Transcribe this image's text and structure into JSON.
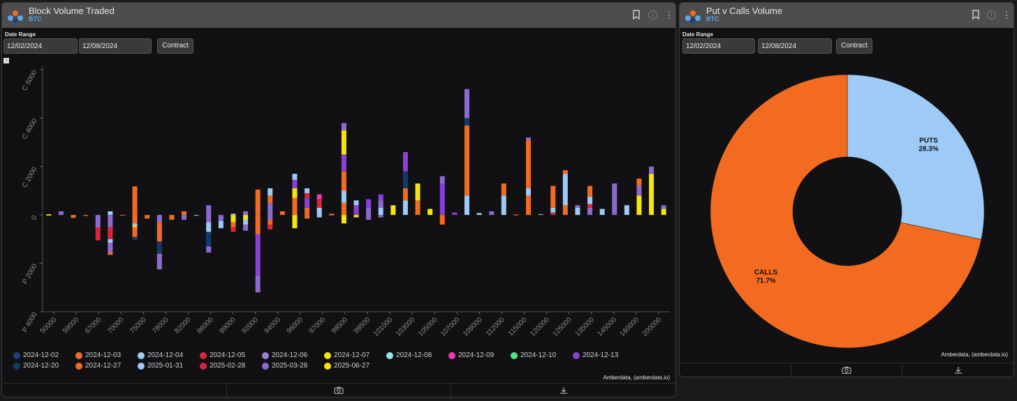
{
  "left": {
    "title": "Block Volume Traded",
    "subtitle": "BTC",
    "date_range_label": "Date Range",
    "start_date": "12/02/2024",
    "end_date": "12/08/2024",
    "contract_button": "Contract",
    "credit": "Amberdata, (amberdata.io)"
  },
  "right": {
    "title": "Put v Calls Volume",
    "subtitle": "BTC",
    "date_range_label": "Date Range",
    "start_date": "12/02/2024",
    "end_date": "12/08/2024",
    "contract_button": "Contract",
    "credit": "Amberdata, (amberdata.io)"
  },
  "icons": {
    "bookmark": "bookmark-icon",
    "info": "info-icon",
    "menu": "more-vertical-icon",
    "camera": "camera-icon",
    "download": "download-icon",
    "logo": "amberdata-logo"
  },
  "chart_data": [
    {
      "type": "bar",
      "stacked": true,
      "ylim": [
        -4000,
        6000
      ],
      "yticks": [
        {
          "value": 6000,
          "label": "C 6000"
        },
        {
          "value": 4000,
          "label": "C 4000"
        },
        {
          "value": 2000,
          "label": "C 2000"
        },
        {
          "value": 0,
          "label": "0"
        },
        {
          "value": -2000,
          "label": "P 2000"
        },
        {
          "value": -4000,
          "label": "P 4000"
        }
      ],
      "xtick_labels": [
        "50000",
        "59000",
        "67000",
        "70000",
        "75000",
        "78000",
        "82000",
        "86000",
        "89000",
        "92000",
        "94000",
        "96000",
        "97000",
        "98500",
        "99500",
        "101000",
        "103000",
        "105000",
        "107000",
        "109000",
        "112000",
        "115000",
        "120000",
        "125000",
        "135000",
        "145000",
        "160000",
        "200000"
      ],
      "legend": [
        {
          "name": "2024-12-02",
          "color": "#1b3f7a"
        },
        {
          "name": "2024-12-03",
          "color": "#f26b21"
        },
        {
          "name": "2024-12-04",
          "color": "#9dcbf5"
        },
        {
          "name": "2024-12-05",
          "color": "#d7263d"
        },
        {
          "name": "2024-12-06",
          "color": "#9b7fd4"
        },
        {
          "name": "2024-12-07",
          "color": "#f5e50a"
        },
        {
          "name": "2024-12-08",
          "color": "#8ee6e6"
        },
        {
          "name": "2024-12-09",
          "color": "#f03ab0"
        },
        {
          "name": "2024-12-10",
          "color": "#4ee88a"
        },
        {
          "name": "2024-12-13",
          "color": "#8a3fd8"
        },
        {
          "name": "2024-12-20",
          "color": "#123a6b"
        },
        {
          "name": "2024-12-27",
          "color": "#f26b21"
        },
        {
          "name": "2025-01-31",
          "color": "#9dcbf5"
        },
        {
          "name": "2025-02-28",
          "color": "#d7263d"
        },
        {
          "name": "2025-03-28",
          "color": "#8e6ad0"
        },
        {
          "name": "2025-06-27",
          "color": "#f5e50a"
        }
      ],
      "bars": [
        {
          "call": 30,
          "put": -30,
          "pos": [
            [
              "#f5e50a",
              30
            ]
          ],
          "neg": [
            [
              "#f5e50a",
              30
            ]
          ]
        },
        {
          "call": 150,
          "put": 0,
          "pos": [
            [
              "#8e6ad0",
              150
            ]
          ],
          "neg": []
        },
        {
          "call": 0,
          "put": -120,
          "pos": [],
          "neg": [
            [
              "#f26b21",
              120
            ]
          ]
        },
        {
          "call": 0,
          "put": -40,
          "pos": [],
          "neg": [
            [
              "#f26b21",
              40
            ]
          ]
        },
        {
          "call": 0,
          "put": -1050,
          "pos": [],
          "neg": [
            [
              "#8e6ad0",
              520
            ],
            [
              "#d7263d",
              530
            ]
          ]
        },
        {
          "call": 150,
          "put": -1650,
          "pos": [
            [
              "#9dcbf5",
              150
            ]
          ],
          "neg": [
            [
              "#8e6ad0",
              500
            ],
            [
              "#d7263d",
              500
            ],
            [
              "#9dcbf5",
              150
            ],
            [
              "#8e6ad0",
              400
            ],
            [
              "#f26b21",
              100
            ]
          ]
        },
        {
          "call": 0,
          "put": -30,
          "pos": [],
          "neg": [
            [
              "#f26b21",
              30
            ]
          ]
        },
        {
          "call": 1180,
          "put": -1030,
          "pos": [
            [
              "#f26b21",
              1180
            ]
          ],
          "neg": [
            [
              "#f26b21",
              350
            ],
            [
              "#9dcbf5",
              100
            ],
            [
              "#f5e50a",
              60
            ],
            [
              "#f26b21",
              400
            ],
            [
              "#123a6b",
              120
            ]
          ]
        },
        {
          "call": 0,
          "put": -150,
          "pos": [],
          "neg": [
            [
              "#f26b21",
              150
            ]
          ]
        },
        {
          "call": 0,
          "put": -2250,
          "pos": [],
          "neg": [
            [
              "#8e6ad0",
              300
            ],
            [
              "#f26b21",
              800
            ],
            [
              "#123a6b",
              500
            ],
            [
              "#8e6ad0",
              650
            ]
          ]
        },
        {
          "call": 0,
          "put": -200,
          "pos": [],
          "neg": [
            [
              "#f26b21",
              200
            ]
          ]
        },
        {
          "call": 150,
          "put": -200,
          "pos": [
            [
              "#f26b21",
              150
            ]
          ],
          "neg": [
            [
              "#8e6ad0",
              200
            ]
          ]
        },
        {
          "call": 0,
          "put": -30,
          "pos": [],
          "neg": [
            [
              "#9dcbf5",
              30
            ]
          ]
        },
        {
          "call": 400,
          "put": -1550,
          "pos": [
            [
              "#8e6ad0",
              400
            ]
          ],
          "neg": [
            [
              "#8e6ad0",
              300
            ],
            [
              "#9dcbf5",
              400
            ],
            [
              "#123a6b",
              600
            ],
            [
              "#8e6ad0",
              250
            ]
          ]
        },
        {
          "call": 0,
          "put": -550,
          "pos": [],
          "neg": [
            [
              "#8e6ad0",
              250
            ],
            [
              "#9dcbf5",
              300
            ]
          ]
        },
        {
          "call": 50,
          "put": -700,
          "pos": [
            [
              "#9dcbf5",
              50
            ]
          ],
          "neg": [
            [
              "#f5e50a",
              300
            ],
            [
              "#f26b21",
              200
            ],
            [
              "#d7263d",
              200
            ]
          ]
        },
        {
          "call": 150,
          "put": -650,
          "pos": [
            [
              "#8e6ad0",
              150
            ]
          ],
          "neg": [
            [
              "#f5e50a",
              200
            ],
            [
              "#9dcbf5",
              200
            ],
            [
              "#8e6ad0",
              250
            ]
          ]
        },
        {
          "call": 1050,
          "put": -3200,
          "pos": [
            [
              "#f26b21",
              1050
            ]
          ],
          "neg": [
            [
              "#f26b21",
              800
            ],
            [
              "#8a3fd8",
              1700
            ],
            [
              "#8e6ad0",
              700
            ]
          ]
        },
        {
          "call": 1100,
          "put": -600,
          "pos": [
            [
              "#8e6ad0",
              500
            ],
            [
              "#f26b21",
              300
            ],
            [
              "#9dcbf5",
              300
            ]
          ],
          "neg": [
            [
              "#8e6ad0",
              200
            ],
            [
              "#f26b21",
              200
            ],
            [
              "#d7263d",
              200
            ]
          ]
        },
        {
          "call": 150,
          "put": 0,
          "pos": [
            [
              "#f26b21",
              150
            ]
          ],
          "neg": []
        },
        {
          "call": 1700,
          "put": -550,
          "pos": [
            [
              "#f26b21",
              700
            ],
            [
              "#f5e50a",
              400
            ],
            [
              "#8a3fd8",
              350
            ],
            [
              "#9dcbf5",
              250
            ]
          ],
          "neg": [
            [
              "#f5e50a",
              550
            ]
          ]
        },
        {
          "call": 1100,
          "put": -150,
          "pos": [
            [
              "#f26b21",
              300
            ],
            [
              "#8a3fd8",
              400
            ],
            [
              "#d7263d",
              200
            ],
            [
              "#9dcbf5",
              200
            ]
          ],
          "neg": [
            [
              "#f26b21",
              150
            ]
          ]
        },
        {
          "call": 850,
          "put": -100,
          "pos": [
            [
              "#9dcbf5",
              300
            ],
            [
              "#d7263d",
              350
            ],
            [
              "#f03ab0",
              200
            ]
          ],
          "neg": [
            [
              "#9dcbf5",
              100
            ]
          ]
        },
        {
          "call": 50,
          "put": -20,
          "pos": [
            [
              "#f26b21",
              50
            ]
          ],
          "neg": [
            [
              "#f26b21",
              20
            ]
          ]
        },
        {
          "call": 3800,
          "put": -350,
          "pos": [
            [
              "#f26b21",
              500
            ],
            [
              "#9dcbf5",
              500
            ],
            [
              "#f26b21",
              800
            ],
            [
              "#8a3fd8",
              700
            ],
            [
              "#f5e50a",
              1000
            ],
            [
              "#8e6ad0",
              300
            ]
          ],
          "neg": [
            [
              "#f5e50a",
              350
            ]
          ]
        },
        {
          "call": 600,
          "put": -100,
          "pos": [
            [
              "#8a3fd8",
              400
            ],
            [
              "#9dcbf5",
              200
            ]
          ],
          "neg": [
            [
              "#f5e50a",
              100
            ]
          ]
        },
        {
          "call": 650,
          "put": -200,
          "pos": [
            [
              "#8e6ad0",
              300
            ],
            [
              "#8a3fd8",
              350
            ]
          ],
          "neg": [
            [
              "#8e6ad0",
              200
            ]
          ]
        },
        {
          "call": 850,
          "put": -100,
          "pos": [
            [
              "#9dcbf5",
              300
            ],
            [
              "#8e6ad0",
              300
            ],
            [
              "#8a3fd8",
              250
            ]
          ],
          "neg": [
            [
              "#8e6ad0",
              100
            ]
          ]
        },
        {
          "call": 400,
          "put": 0,
          "pos": [
            [
              "#f5e50a",
              400
            ]
          ],
          "neg": []
        },
        {
          "call": 2600,
          "put": 0,
          "pos": [
            [
              "#9dcbf5",
              600
            ],
            [
              "#f26b21",
              500
            ],
            [
              "#123a6b",
              700
            ],
            [
              "#8a3fd8",
              800
            ]
          ],
          "neg": []
        },
        {
          "call": 1300,
          "put": 0,
          "pos": [
            [
              "#f26b21",
              600
            ],
            [
              "#f5e50a",
              700
            ]
          ],
          "neg": []
        },
        {
          "call": 250,
          "put": 0,
          "pos": [
            [
              "#f5e50a",
              250
            ]
          ],
          "neg": []
        },
        {
          "call": 1600,
          "put": -400,
          "pos": [
            [
              "#8a3fd8",
              1300
            ],
            [
              "#8e6ad0",
              300
            ]
          ],
          "neg": [
            [
              "#f26b21",
              400
            ]
          ]
        },
        {
          "call": 100,
          "put": 0,
          "pos": [
            [
              "#8a3fd8",
              100
            ]
          ],
          "neg": []
        },
        {
          "call": 5200,
          "put": 0,
          "pos": [
            [
              "#9dcbf5",
              800
            ],
            [
              "#f26b21",
              2900
            ],
            [
              "#123a6b",
              300
            ],
            [
              "#8e6ad0",
              1200
            ]
          ],
          "neg": []
        },
        {
          "call": 80,
          "put": 0,
          "pos": [
            [
              "#9dcbf5",
              80
            ]
          ],
          "neg": []
        },
        {
          "call": 150,
          "put": 0,
          "pos": [
            [
              "#8e6ad0",
              150
            ]
          ],
          "neg": []
        },
        {
          "call": 1300,
          "put": 0,
          "pos": [
            [
              "#9dcbf5",
              800
            ],
            [
              "#f26b21",
              500
            ]
          ],
          "neg": []
        },
        {
          "call": 20,
          "put": -20,
          "pos": [
            [
              "#f26b21",
              20
            ]
          ],
          "neg": [
            [
              "#f26b21",
              20
            ]
          ]
        },
        {
          "call": 3200,
          "put": 0,
          "pos": [
            [
              "#f26b21",
              800
            ],
            [
              "#9dcbf5",
              300
            ],
            [
              "#f26b21",
              2000
            ],
            [
              "#8e6ad0",
              100
            ]
          ],
          "neg": []
        },
        {
          "call": 30,
          "put": 0,
          "pos": [
            [
              "#9dcbf5",
              30
            ]
          ],
          "neg": []
        },
        {
          "call": 1200,
          "put": 0,
          "pos": [
            [
              "#d7263d",
              100
            ],
            [
              "#9dcbf5",
              200
            ],
            [
              "#f26b21",
              900
            ]
          ],
          "neg": []
        },
        {
          "call": 1850,
          "put": 0,
          "pos": [
            [
              "#f26b21",
              400
            ],
            [
              "#9dcbf5",
              1300
            ],
            [
              "#f26b21",
              150
            ]
          ],
          "neg": []
        },
        {
          "call": 400,
          "put": 0,
          "pos": [
            [
              "#9dcbf5",
              300
            ],
            [
              "#8e6ad0",
              100
            ]
          ],
          "neg": []
        },
        {
          "call": 1200,
          "put": 0,
          "pos": [
            [
              "#8e6ad0",
              300
            ],
            [
              "#d7263d",
              150
            ],
            [
              "#9dcbf5",
              300
            ],
            [
              "#f26b21",
              450
            ]
          ],
          "neg": []
        },
        {
          "call": 250,
          "put": 0,
          "pos": [
            [
              "#9dcbf5",
              250
            ]
          ],
          "neg": []
        },
        {
          "call": 1300,
          "put": 0,
          "pos": [
            [
              "#8e6ad0",
              1300
            ]
          ],
          "neg": []
        },
        {
          "call": 400,
          "put": 0,
          "pos": [
            [
              "#9dcbf5",
              400
            ]
          ],
          "neg": []
        },
        {
          "call": 1500,
          "put": 0,
          "pos": [
            [
              "#f5e50a",
              800
            ],
            [
              "#8e6ad0",
              400
            ],
            [
              "#f26b21",
              300
            ]
          ],
          "neg": []
        },
        {
          "call": 2000,
          "put": 0,
          "pos": [
            [
              "#f5e50a",
              1700
            ],
            [
              "#8e6ad0",
              300
            ]
          ],
          "neg": []
        },
        {
          "call": 400,
          "put": 0,
          "pos": [
            [
              "#f5e50a",
              250
            ],
            [
              "#8e6ad0",
              150
            ]
          ],
          "neg": []
        }
      ]
    },
    {
      "type": "pie",
      "donut": true,
      "slices": [
        {
          "label": "PUTS",
          "value": 28.3,
          "text": "28.3%",
          "color": "#9dcbf5"
        },
        {
          "label": "CALLS",
          "value": 71.7,
          "text": "71.7%",
          "color": "#f26b21"
        }
      ]
    }
  ]
}
